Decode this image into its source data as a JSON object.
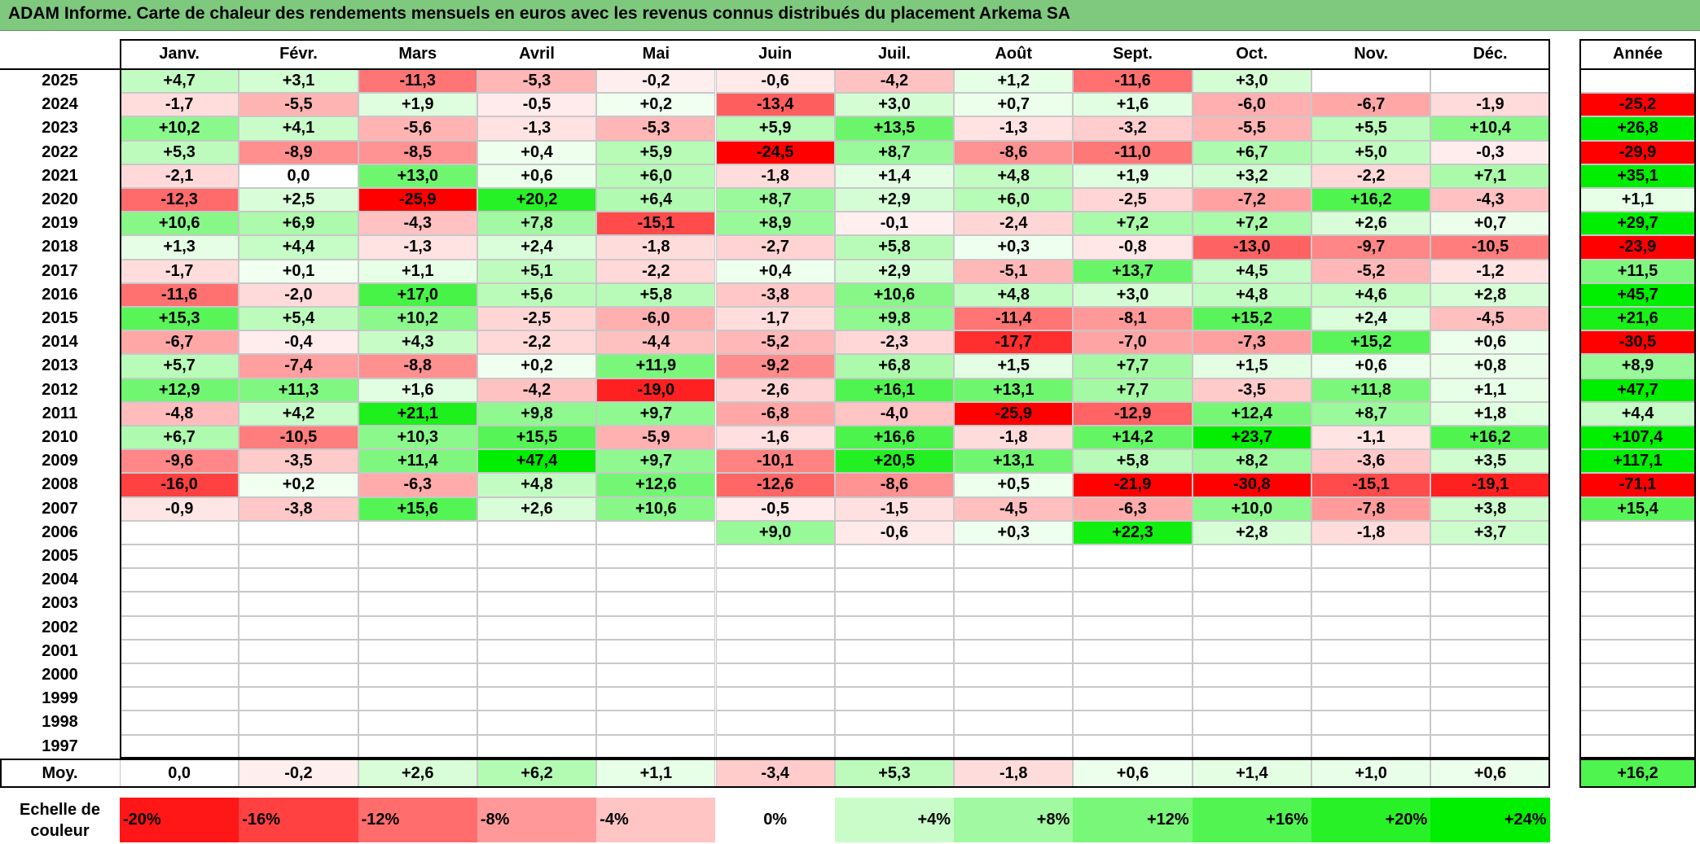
{
  "title": "ADAM Informe. Carte de chaleur des rendements mensuels en euros avec les revenus connus distribués du placement Arkema SA",
  "chart_data": {
    "type": "heatmap",
    "columns": [
      "Janv.",
      "Févr.",
      "Mars",
      "Avril",
      "Mai",
      "Juin",
      "Juil.",
      "Août",
      "Sept.",
      "Oct.",
      "Nov.",
      "Déc."
    ],
    "year_header": "Année",
    "rows": [
      {
        "year": "2025",
        "months": [
          4.7,
          3.1,
          -11.3,
          -5.3,
          -0.2,
          -0.6,
          -4.2,
          1.2,
          -11.6,
          3.0,
          null,
          null
        ],
        "annual": null
      },
      {
        "year": "2024",
        "months": [
          -1.7,
          -5.5,
          1.9,
          -0.5,
          0.2,
          -13.4,
          3.0,
          0.7,
          1.6,
          -6.0,
          -6.7,
          -1.9
        ],
        "annual": -25.2
      },
      {
        "year": "2023",
        "months": [
          10.2,
          4.1,
          -5.6,
          -1.3,
          -5.3,
          5.9,
          13.5,
          -1.3,
          -3.2,
          -5.5,
          5.5,
          10.4
        ],
        "annual": 26.8
      },
      {
        "year": "2022",
        "months": [
          5.3,
          -8.9,
          -8.5,
          0.4,
          5.9,
          -24.5,
          8.7,
          -8.6,
          -11.0,
          6.7,
          5.0,
          -0.3
        ],
        "annual": -29.9
      },
      {
        "year": "2021",
        "months": [
          -2.1,
          0.0,
          13.0,
          0.6,
          6.0,
          -1.8,
          1.4,
          4.8,
          1.9,
          3.2,
          -2.2,
          7.1
        ],
        "annual": 35.1
      },
      {
        "year": "2020",
        "months": [
          -12.3,
          2.5,
          -25.9,
          20.2,
          6.4,
          8.7,
          2.9,
          6.0,
          -2.5,
          -7.2,
          16.2,
          -4.3
        ],
        "annual": 1.1
      },
      {
        "year": "2019",
        "months": [
          10.6,
          6.9,
          -4.3,
          7.8,
          -15.1,
          8.9,
          -0.1,
          -2.4,
          7.2,
          7.2,
          2.6,
          0.7
        ],
        "annual": 29.7
      },
      {
        "year": "2018",
        "months": [
          1.3,
          4.4,
          -1.3,
          2.4,
          -1.8,
          -2.7,
          5.8,
          0.3,
          -0.8,
          -13.0,
          -9.7,
          -10.5
        ],
        "annual": -23.9
      },
      {
        "year": "2017",
        "months": [
          -1.7,
          0.1,
          1.1,
          5.1,
          -2.2,
          0.4,
          2.9,
          -5.1,
          13.7,
          4.5,
          -5.2,
          -1.2
        ],
        "annual": 11.5
      },
      {
        "year": "2016",
        "months": [
          -11.6,
          -2.0,
          17.0,
          5.6,
          5.8,
          -3.8,
          10.6,
          4.8,
          3.0,
          4.8,
          4.6,
          2.8
        ],
        "annual": 45.7
      },
      {
        "year": "2015",
        "months": [
          15.3,
          5.4,
          10.2,
          -2.5,
          -6.0,
          -1.7,
          9.8,
          -11.4,
          -8.1,
          15.2,
          2.4,
          -4.5
        ],
        "annual": 21.6
      },
      {
        "year": "2014",
        "months": [
          -6.7,
          -0.4,
          4.3,
          -2.2,
          -4.4,
          -5.2,
          -2.3,
          -17.7,
          -7.0,
          -7.3,
          15.2,
          0.6
        ],
        "annual": -30.5
      },
      {
        "year": "2013",
        "months": [
          5.7,
          -7.4,
          -8.8,
          0.2,
          11.9,
          -9.2,
          6.8,
          1.5,
          7.7,
          1.5,
          0.6,
          0.8
        ],
        "annual": 8.9
      },
      {
        "year": "2012",
        "months": [
          12.9,
          11.3,
          1.6,
          -4.2,
          -19.0,
          -2.6,
          16.1,
          13.1,
          7.7,
          -3.5,
          11.8,
          1.1
        ],
        "annual": 47.7
      },
      {
        "year": "2011",
        "months": [
          -4.8,
          4.2,
          21.1,
          9.8,
          9.7,
          -6.8,
          -4.0,
          -25.9,
          -12.9,
          12.4,
          8.7,
          1.8
        ],
        "annual": 4.4
      },
      {
        "year": "2010",
        "months": [
          6.7,
          -10.5,
          10.3,
          15.5,
          -5.9,
          -1.6,
          16.6,
          -1.8,
          14.2,
          23.7,
          -1.1,
          16.2
        ],
        "annual": 107.4
      },
      {
        "year": "2009",
        "months": [
          -9.6,
          -3.5,
          11.4,
          47.4,
          9.7,
          -10.1,
          20.5,
          13.1,
          5.8,
          8.2,
          -3.6,
          3.5
        ],
        "annual": 117.1
      },
      {
        "year": "2008",
        "months": [
          -16.0,
          0.2,
          -6.3,
          4.8,
          12.6,
          -12.6,
          -8.6,
          0.5,
          -21.9,
          -30.8,
          -15.1,
          -19.1
        ],
        "annual": -71.1
      },
      {
        "year": "2007",
        "months": [
          -0.9,
          -3.8,
          15.6,
          2.6,
          10.6,
          -0.5,
          -1.5,
          -4.5,
          -6.3,
          10.0,
          -7.8,
          3.8
        ],
        "annual": 15.4
      },
      {
        "year": "2006",
        "months": [
          null,
          null,
          null,
          null,
          null,
          9.0,
          -0.6,
          0.3,
          22.3,
          2.8,
          -1.8,
          3.7
        ],
        "annual": null
      },
      {
        "year": "2005",
        "months": [
          null,
          null,
          null,
          null,
          null,
          null,
          null,
          null,
          null,
          null,
          null,
          null
        ],
        "annual": null
      },
      {
        "year": "2004",
        "months": [
          null,
          null,
          null,
          null,
          null,
          null,
          null,
          null,
          null,
          null,
          null,
          null
        ],
        "annual": null
      },
      {
        "year": "2003",
        "months": [
          null,
          null,
          null,
          null,
          null,
          null,
          null,
          null,
          null,
          null,
          null,
          null
        ],
        "annual": null
      },
      {
        "year": "2002",
        "months": [
          null,
          null,
          null,
          null,
          null,
          null,
          null,
          null,
          null,
          null,
          null,
          null
        ],
        "annual": null
      },
      {
        "year": "2001",
        "months": [
          null,
          null,
          null,
          null,
          null,
          null,
          null,
          null,
          null,
          null,
          null,
          null
        ],
        "annual": null
      },
      {
        "year": "2000",
        "months": [
          null,
          null,
          null,
          null,
          null,
          null,
          null,
          null,
          null,
          null,
          null,
          null
        ],
        "annual": null
      },
      {
        "year": "1999",
        "months": [
          null,
          null,
          null,
          null,
          null,
          null,
          null,
          null,
          null,
          null,
          null,
          null
        ],
        "annual": null
      },
      {
        "year": "1998",
        "months": [
          null,
          null,
          null,
          null,
          null,
          null,
          null,
          null,
          null,
          null,
          null,
          null
        ],
        "annual": null
      },
      {
        "year": "1997",
        "months": [
          null,
          null,
          null,
          null,
          null,
          null,
          null,
          null,
          null,
          null,
          null,
          null
        ],
        "annual": null
      }
    ],
    "average": {
      "label": "Moy.",
      "months": [
        0.0,
        -0.2,
        2.6,
        6.2,
        1.1,
        -3.4,
        5.3,
        -1.8,
        0.6,
        1.4,
        1.0,
        0.6
      ],
      "annual": 16.2
    },
    "scale": {
      "label": "Echelle de couleur",
      "steps": [
        "-20%",
        "-16%",
        "-12%",
        "-8%",
        "-4%",
        "0%",
        "+4%",
        "+8%",
        "+12%",
        "+16%",
        "+20%",
        "+24%"
      ],
      "values": [
        -20,
        -16,
        -12,
        -8,
        -4,
        0,
        4,
        8,
        12,
        16,
        20,
        24
      ]
    },
    "colors": {
      "neg_light": "#fff0f0",
      "neg_full": "#ff0000",
      "pos_light": "#f2fff2",
      "pos_full": "#00ee00",
      "title_bar": "#7fc97f"
    }
  }
}
